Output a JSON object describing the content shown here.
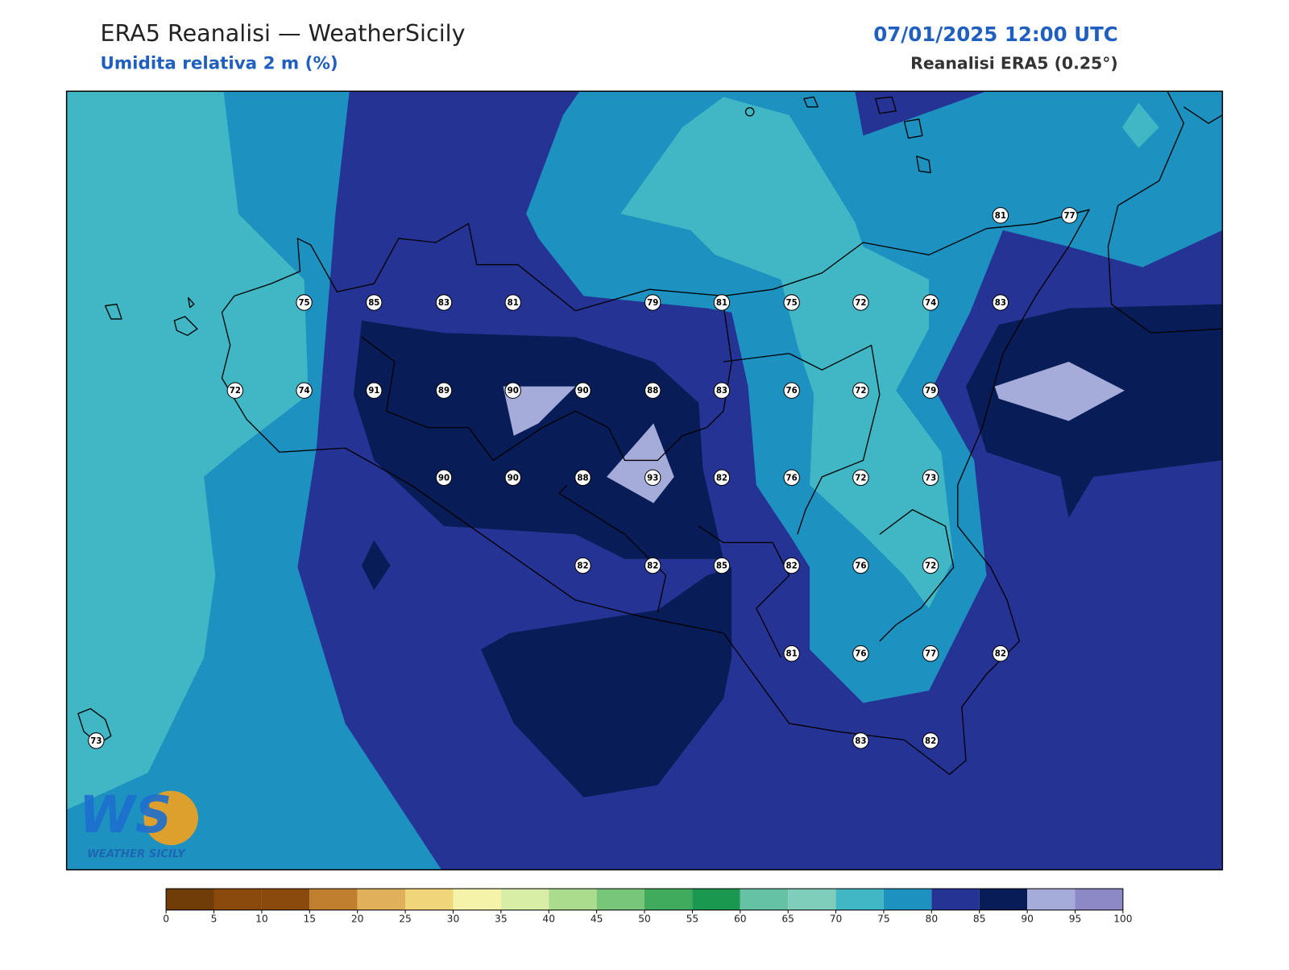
{
  "header": {
    "title": "ERA5 Reanalisi — WeatherSicily",
    "subtitle": "Umidita relativa 2 m (%)",
    "datetime": "07/01/2025 12:00 UTC",
    "source": "Reanalisi ERA5 (0.25°)"
  },
  "stations": [
    75,
    85,
    83,
    81,
    79,
    81,
    75,
    72,
    74,
    83,
    81,
    77,
    72,
    74,
    91,
    89,
    90,
    90,
    88,
    83,
    76,
    72,
    79,
    90,
    90,
    88,
    93,
    82,
    76,
    72,
    73,
    82,
    82,
    85,
    82,
    76,
    72,
    81,
    76,
    77,
    82,
    73,
    83,
    82
  ],
  "colorbar": {
    "ticks": [
      0,
      5,
      10,
      15,
      20,
      25,
      30,
      35,
      40,
      45,
      50,
      55,
      60,
      65,
      70,
      75,
      80,
      85,
      90,
      95,
      100
    ],
    "colors": [
      "#703d09",
      "#8a4a0e",
      "#8a4a0e",
      "#c07f2e",
      "#e0b05a",
      "#f0d57a",
      "#f5f3a9",
      "#d8eda6",
      "#abdc8e",
      "#78c679",
      "#41ab5d",
      "#1a9850",
      "#66c2a4",
      "#7fcdbb",
      "#41b6c4",
      "#1d91c0",
      "#253494",
      "#081d58",
      "#a6acd9",
      "#8c89c6"
    ]
  },
  "logo": {
    "mark": "WS",
    "text": "WEATHER SICILY"
  }
}
